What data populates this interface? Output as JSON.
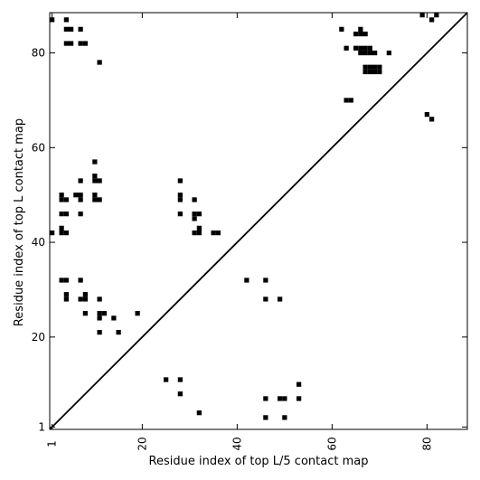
{
  "chart_data": {
    "type": "heatmap",
    "title": "",
    "xlabel": "Residue index of top L/5 contact map",
    "ylabel": "Residue index of top L contact map",
    "xlim": [
      0.5,
      88.5
    ],
    "ylim": [
      0.5,
      88.5
    ],
    "x_tick_values": [
      1,
      20,
      40,
      60,
      80
    ],
    "x_tick_labels": [
      "1",
      "20",
      "40",
      "60",
      "80"
    ],
    "y_tick_values": [
      1,
      20,
      40,
      60,
      80
    ],
    "y_tick_labels": [
      "1",
      "20",
      "40",
      "60",
      "80"
    ],
    "diagonal": true,
    "colors": {
      "contact": "#000000",
      "background": "#ffffff"
    },
    "upper_triangle_points": [
      [
        1,
        87
      ],
      [
        4,
        87
      ],
      [
        7,
        85
      ],
      [
        4,
        85
      ],
      [
        5,
        85
      ],
      [
        4,
        82
      ],
      [
        5,
        82
      ],
      [
        7,
        82
      ],
      [
        8,
        82
      ],
      [
        11,
        78
      ],
      [
        1,
        42
      ],
      [
        3,
        42
      ],
      [
        4,
        42
      ],
      [
        3,
        43
      ],
      [
        3,
        46
      ],
      [
        4,
        46
      ],
      [
        3,
        49
      ],
      [
        3,
        50
      ],
      [
        4,
        49
      ],
      [
        7,
        46
      ],
      [
        6,
        50
      ],
      [
        7,
        50
      ],
      [
        7,
        49
      ],
      [
        7,
        53
      ],
      [
        10,
        49
      ],
      [
        10,
        50
      ],
      [
        11,
        49
      ],
      [
        10,
        53
      ],
      [
        11,
        53
      ],
      [
        10,
        54
      ],
      [
        10,
        57
      ],
      [
        3,
        32
      ],
      [
        4,
        32
      ],
      [
        7,
        32
      ],
      [
        4,
        28
      ],
      [
        4,
        29
      ],
      [
        7,
        28
      ],
      [
        8,
        28
      ],
      [
        8,
        29
      ],
      [
        11,
        28
      ],
      [
        8,
        25
      ],
      [
        11,
        24
      ],
      [
        11,
        25
      ],
      [
        12,
        25
      ],
      [
        14,
        24
      ],
      [
        11,
        21
      ],
      [
        15,
        21
      ],
      [
        19,
        25
      ],
      [
        28,
        53
      ],
      [
        28,
        50
      ],
      [
        28,
        49
      ],
      [
        31,
        49
      ],
      [
        28,
        46
      ],
      [
        31,
        45
      ],
      [
        31,
        46
      ],
      [
        32,
        46
      ],
      [
        31,
        42
      ],
      [
        32,
        42
      ],
      [
        32,
        43
      ],
      [
        35,
        42
      ],
      [
        36,
        42
      ]
    ],
    "lower_triangle_points": [
      [
        62,
        85
      ],
      [
        63,
        81
      ],
      [
        66,
        85
      ],
      [
        65,
        84
      ],
      [
        66,
        84
      ],
      [
        67,
        84
      ],
      [
        65,
        81
      ],
      [
        66,
        81
      ],
      [
        66,
        80
      ],
      [
        67,
        80
      ],
      [
        67,
        81
      ],
      [
        68,
        81
      ],
      [
        68,
        80
      ],
      [
        69,
        80
      ],
      [
        67,
        77
      ],
      [
        68,
        77
      ],
      [
        69,
        77
      ],
      [
        70,
        77
      ],
      [
        67,
        76
      ],
      [
        68,
        76
      ],
      [
        69,
        76
      ],
      [
        70,
        76
      ],
      [
        72,
        80
      ],
      [
        63,
        70
      ],
      [
        64,
        70
      ],
      [
        79,
        88
      ],
      [
        81,
        87
      ],
      [
        82,
        88
      ],
      [
        80,
        67
      ],
      [
        81,
        66
      ],
      [
        42,
        32
      ],
      [
        46,
        32
      ],
      [
        46,
        28
      ],
      [
        49,
        28
      ],
      [
        25,
        11
      ],
      [
        28,
        11
      ],
      [
        28,
        8
      ],
      [
        32,
        4
      ],
      [
        46,
        7
      ],
      [
        46,
        3
      ],
      [
        49,
        7
      ],
      [
        50,
        7
      ],
      [
        50,
        3
      ],
      [
        53,
        10
      ],
      [
        53,
        7
      ]
    ]
  }
}
